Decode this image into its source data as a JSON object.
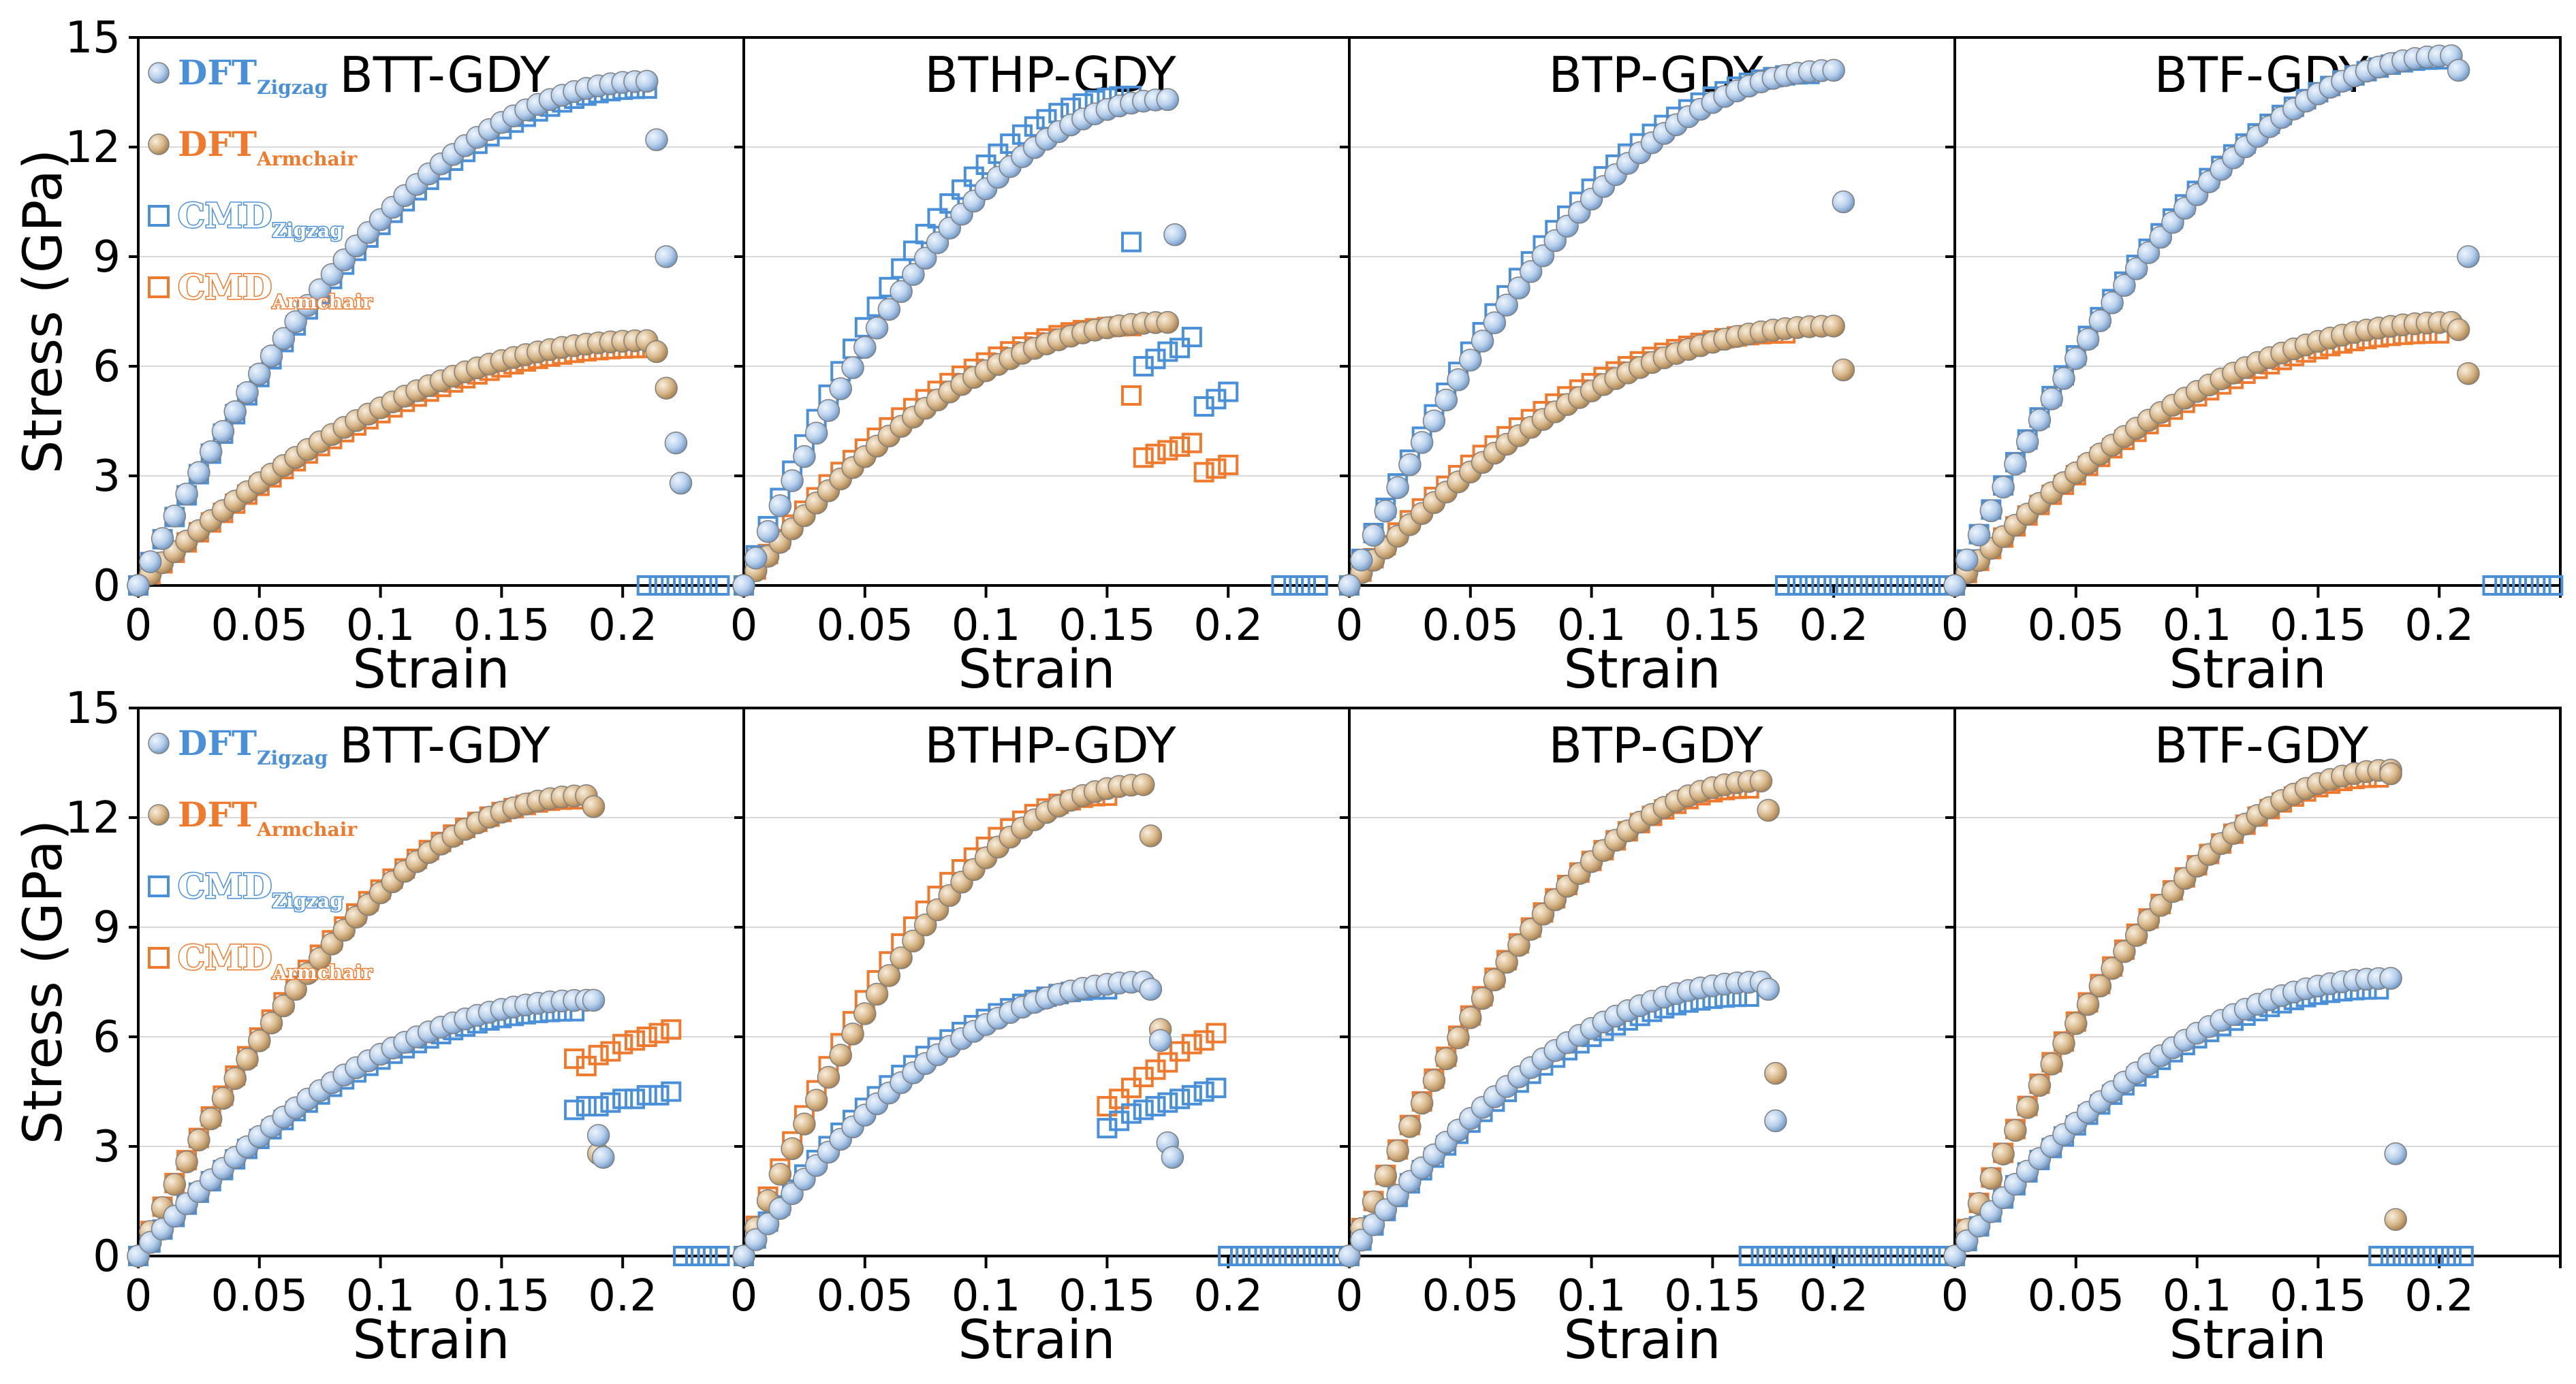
{
  "colors": {
    "zigzag": "#4a90d9",
    "armchair": "#ef7a2d",
    "dft_zigzag_fill": "#b9d1ec",
    "dft_armchair_fill": "#d9b98c",
    "grid": "#d9d9d9"
  },
  "chart_data": [
    {
      "type": "scatter",
      "row": 0,
      "col": 0,
      "title": "BTT-GDY",
      "xlabel": "Strain",
      "ylabel": "Stress (GPa)",
      "xlim": [
        0,
        0.25
      ],
      "ylim": [
        0,
        15
      ],
      "xticks": [
        "0",
        "0.05",
        "0.1",
        "0.15",
        "0.2"
      ],
      "yticks": [
        "0",
        "3",
        "6",
        "9",
        "12",
        "15"
      ],
      "legend": true,
      "series": {
        "dft_zigzag": {
          "e_max": 0.21,
          "s_max": 13.8,
          "drop": [
            [
              0.214,
              12.2
            ],
            [
              0.218,
              9.0
            ],
            [
              0.222,
              3.9
            ],
            [
              0.224,
              2.8
            ]
          ]
        },
        "dft_armchair": {
          "e_max": 0.21,
          "s_max": 6.7,
          "drop": [
            [
              0.214,
              6.4
            ],
            [
              0.218,
              5.4
            ]
          ]
        },
        "cmd_zigzag": {
          "e_max": 0.21,
          "s_max": 13.6,
          "drop": [],
          "zero": [
            0.21,
            0.24
          ]
        },
        "cmd_armchair": {
          "e_max": 0.21,
          "s_max": 6.5,
          "drop": []
        }
      }
    },
    {
      "type": "scatter",
      "row": 0,
      "col": 1,
      "title": "BTHP-GDY",
      "xlabel": "Strain",
      "ylabel": "",
      "xlim": [
        0,
        0.25
      ],
      "ylim": [
        0,
        15
      ],
      "xticks": [
        "0",
        "0.05",
        "0.1",
        "0.15",
        "0.2"
      ],
      "yticks": [],
      "legend": false,
      "series": {
        "dft_zigzag": {
          "e_max": 0.175,
          "s_max": 13.3,
          "drop": [
            [
              0.178,
              9.6
            ]
          ]
        },
        "dft_armchair": {
          "e_max": 0.175,
          "s_max": 7.2,
          "drop": []
        },
        "cmd_zigzag": {
          "e_max": 0.16,
          "s_max": 13.4,
          "drop": [
            [
              0.16,
              9.4
            ],
            [
              0.165,
              6.0
            ],
            [
              0.17,
              6.2
            ],
            [
              0.175,
              6.4
            ],
            [
              0.18,
              6.5
            ],
            [
              0.185,
              6.8
            ],
            [
              0.19,
              4.9
            ],
            [
              0.195,
              5.1
            ],
            [
              0.2,
              5.3
            ]
          ],
          "zero": [
            0.222,
            0.238
          ]
        },
        "cmd_armchair": {
          "e_max": 0.16,
          "s_max": 7.1,
          "drop": [
            [
              0.16,
              5.2
            ],
            [
              0.165,
              3.5
            ],
            [
              0.17,
              3.6
            ],
            [
              0.175,
              3.7
            ],
            [
              0.18,
              3.8
            ],
            [
              0.185,
              3.9
            ],
            [
              0.19,
              3.1
            ],
            [
              0.195,
              3.2
            ],
            [
              0.2,
              3.3
            ]
          ]
        }
      }
    },
    {
      "type": "scatter",
      "row": 0,
      "col": 2,
      "title": "BTP-GDY",
      "xlabel": "Strain",
      "ylabel": "",
      "xlim": [
        0,
        0.25
      ],
      "ylim": [
        0,
        15
      ],
      "xticks": [
        "0",
        "0.05",
        "0.1",
        "0.15",
        "0.2"
      ],
      "yticks": [],
      "legend": false,
      "series": {
        "dft_zigzag": {
          "e_max": 0.2,
          "s_max": 14.1,
          "drop": [
            [
              0.204,
              10.5
            ]
          ]
        },
        "dft_armchair": {
          "e_max": 0.2,
          "s_max": 7.1,
          "drop": [
            [
              0.204,
              5.9
            ]
          ]
        },
        "cmd_zigzag": {
          "e_max": 0.19,
          "s_max": 14.0,
          "drop": [],
          "zero": [
            0.18,
            0.25
          ]
        },
        "cmd_armchair": {
          "e_max": 0.18,
          "s_max": 6.9,
          "drop": []
        }
      }
    },
    {
      "type": "scatter",
      "row": 0,
      "col": 3,
      "title": "BTF-GDY",
      "xlabel": "Strain",
      "ylabel": "",
      "xlim": [
        0,
        0.25
      ],
      "ylim": [
        0,
        15
      ],
      "xticks": [
        "0",
        "0.05",
        "0.1",
        "0.15",
        "0.2"
      ],
      "yticks": [],
      "legend": false,
      "series": {
        "dft_zigzag": {
          "e_max": 0.205,
          "s_max": 14.5,
          "drop": [
            [
              0.208,
              14.1
            ],
            [
              0.212,
              9.0
            ]
          ]
        },
        "dft_armchair": {
          "e_max": 0.205,
          "s_max": 7.2,
          "drop": [
            [
              0.208,
              7.0
            ],
            [
              0.212,
              5.8
            ]
          ]
        },
        "cmd_zigzag": {
          "e_max": 0.2,
          "s_max": 14.4,
          "drop": [],
          "zero": [
            0.222,
            0.25
          ]
        },
        "cmd_armchair": {
          "e_max": 0.2,
          "s_max": 6.9,
          "drop": []
        }
      }
    },
    {
      "type": "scatter",
      "row": 1,
      "col": 0,
      "title": "BTT-GDY",
      "xlabel": "Strain",
      "ylabel": "Stress (GPa)",
      "xlim": [
        0,
        0.25
      ],
      "ylim": [
        0,
        15
      ],
      "xticks": [
        "0",
        "0.05",
        "0.1",
        "0.15",
        "0.2"
      ],
      "yticks": [
        "0",
        "3",
        "6",
        "9",
        "12",
        "15"
      ],
      "legend": true,
      "series": {
        "dft_zigzag": {
          "e_max": 0.185,
          "s_max": 7.0,
          "drop": [
            [
              0.188,
              7.0
            ],
            [
              0.19,
              3.3
            ],
            [
              0.192,
              2.7
            ]
          ]
        },
        "dft_armchair": {
          "e_max": 0.185,
          "s_max": 12.6,
          "drop": [
            [
              0.188,
              12.3
            ],
            [
              0.19,
              2.8
            ]
          ]
        },
        "cmd_zigzag": {
          "e_max": 0.18,
          "s_max": 6.7,
          "drop": [
            [
              0.18,
              4.0
            ],
            [
              0.185,
              4.1
            ],
            [
              0.19,
              4.1
            ],
            [
              0.195,
              4.2
            ],
            [
              0.2,
              4.3
            ],
            [
              0.205,
              4.3
            ],
            [
              0.21,
              4.4
            ],
            [
              0.215,
              4.4
            ],
            [
              0.22,
              4.5
            ]
          ],
          "zero": [
            0.225,
            0.24
          ]
        },
        "cmd_armchair": {
          "e_max": 0.18,
          "s_max": 12.5,
          "drop": [
            [
              0.18,
              5.4
            ],
            [
              0.185,
              5.2
            ],
            [
              0.19,
              5.5
            ],
            [
              0.195,
              5.6
            ],
            [
              0.2,
              5.8
            ],
            [
              0.205,
              5.9
            ],
            [
              0.21,
              6.0
            ],
            [
              0.215,
              6.1
            ],
            [
              0.22,
              6.2
            ]
          ],
          "zero": [
            0.225,
            0.24
          ]
        }
      }
    },
    {
      "type": "scatter",
      "row": 1,
      "col": 1,
      "title": "BTHP-GDY",
      "xlabel": "Strain",
      "ylabel": "",
      "xlim": [
        0,
        0.25
      ],
      "ylim": [
        0,
        15
      ],
      "xticks": [
        "0",
        "0.05",
        "0.1",
        "0.15",
        "0.2"
      ],
      "yticks": [],
      "legend": false,
      "series": {
        "dft_zigzag": {
          "e_max": 0.165,
          "s_max": 7.5,
          "drop": [
            [
              0.168,
              7.3
            ],
            [
              0.172,
              5.9
            ],
            [
              0.175,
              3.1
            ],
            [
              0.177,
              2.7
            ]
          ]
        },
        "dft_armchair": {
          "e_max": 0.165,
          "s_max": 12.9,
          "drop": [
            [
              0.168,
              11.5
            ],
            [
              0.172,
              6.2
            ]
          ]
        },
        "cmd_zigzag": {
          "e_max": 0.15,
          "s_max": 7.3,
          "drop": [
            [
              0.15,
              3.5
            ],
            [
              0.155,
              3.7
            ],
            [
              0.16,
              3.9
            ],
            [
              0.165,
              4.0
            ],
            [
              0.17,
              4.1
            ],
            [
              0.175,
              4.2
            ],
            [
              0.18,
              4.3
            ],
            [
              0.185,
              4.4
            ],
            [
              0.19,
              4.5
            ],
            [
              0.195,
              4.6
            ]
          ],
          "zero": [
            0.2,
            0.25
          ]
        },
        "cmd_armchair": {
          "e_max": 0.15,
          "s_max": 12.6,
          "drop": [
            [
              0.15,
              4.1
            ],
            [
              0.155,
              4.3
            ],
            [
              0.16,
              4.6
            ],
            [
              0.165,
              4.9
            ],
            [
              0.17,
              5.1
            ],
            [
              0.175,
              5.3
            ],
            [
              0.18,
              5.6
            ],
            [
              0.185,
              5.8
            ],
            [
              0.19,
              5.9
            ],
            [
              0.195,
              6.1
            ]
          ],
          "zero": [
            0.2,
            0.25
          ]
        }
      }
    },
    {
      "type": "scatter",
      "row": 1,
      "col": 2,
      "title": "BTP-GDY",
      "xlabel": "Strain",
      "ylabel": "",
      "xlim": [
        0,
        0.25
      ],
      "ylim": [
        0,
        15
      ],
      "xticks": [
        "0",
        "0.05",
        "0.1",
        "0.15",
        "0.2"
      ],
      "yticks": [],
      "legend": false,
      "series": {
        "dft_zigzag": {
          "e_max": 0.17,
          "s_max": 7.5,
          "drop": [
            [
              0.173,
              7.3
            ],
            [
              0.176,
              3.7
            ]
          ]
        },
        "dft_armchair": {
          "e_max": 0.17,
          "s_max": 13.0,
          "drop": [
            [
              0.173,
              12.2
            ],
            [
              0.176,
              5.0
            ]
          ]
        },
        "cmd_zigzag": {
          "e_max": 0.165,
          "s_max": 7.1,
          "drop": [],
          "zero": [
            0.165,
            0.25
          ]
        },
        "cmd_armchair": {
          "e_max": 0.165,
          "s_max": 12.8,
          "drop": [],
          "zero": [
            0.165,
            0.25
          ]
        }
      }
    },
    {
      "type": "scatter",
      "row": 1,
      "col": 3,
      "title": "BTF-GDY",
      "xlabel": "Strain",
      "ylabel": "",
      "xlim": [
        0,
        0.25
      ],
      "ylim": [
        0,
        15
      ],
      "xticks": [
        "0",
        "0.05",
        "0.1",
        "0.15",
        "0.2"
      ],
      "yticks": [],
      "legend": false,
      "series": {
        "dft_zigzag": {
          "e_max": 0.18,
          "s_max": 7.6,
          "drop": [
            [
              0.182,
              2.8
            ]
          ]
        },
        "dft_armchair": {
          "e_max": 0.18,
          "s_max": 13.3,
          "drop": [
            [
              0.18,
              13.2
            ],
            [
              0.182,
              1.0
            ]
          ]
        },
        "cmd_zigzag": {
          "e_max": 0.175,
          "s_max": 7.3,
          "drop": [],
          "zero": [
            0.175,
            0.21
          ]
        },
        "cmd_armchair": {
          "e_max": 0.175,
          "s_max": 13.1,
          "drop": [],
          "zero": [
            0.175,
            0.21
          ]
        }
      }
    }
  ],
  "legend": {
    "items": [
      {
        "key": "dft_zigzag",
        "main": "DFT",
        "sub": "Zigzag"
      },
      {
        "key": "dft_armchair",
        "main": "DFT",
        "sub": "Armchair"
      },
      {
        "key": "cmd_zigzag",
        "main": "CMD",
        "sub": "Zigzag"
      },
      {
        "key": "cmd_armchair",
        "main": "CMD",
        "sub": "Armchair"
      }
    ]
  }
}
